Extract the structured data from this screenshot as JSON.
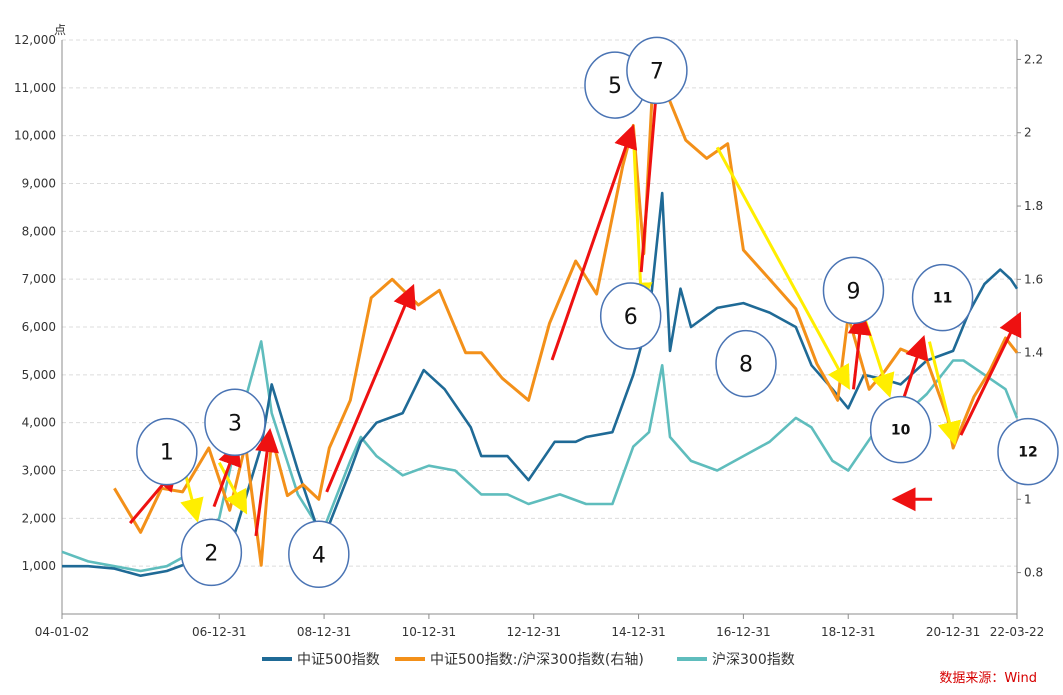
{
  "chart_data": {
    "type": "line",
    "unit_label": "点",
    "source": "数据来源：Wind",
    "left_axis": {
      "min": 0,
      "max": 12000,
      "ticks": [
        1000,
        2000,
        3000,
        4000,
        5000,
        6000,
        7000,
        8000,
        9000,
        10000,
        11000,
        12000
      ],
      "tick_labels": [
        "1,000",
        "2,000",
        "3,000",
        "4,000",
        "5,000",
        "6,000",
        "7,000",
        "8,000",
        "9,000",
        "10,000",
        "11,000",
        "12,000"
      ]
    },
    "right_axis": {
      "min": 0.687,
      "max": 2.253,
      "ticks": [
        0.8,
        1,
        1.2,
        1.4,
        1.6,
        1.8,
        2,
        2.2
      ],
      "tick_labels": [
        "0.8",
        "1",
        "1.2",
        "1.4",
        "1.6",
        "1.8",
        "2",
        "2.2"
      ]
    },
    "x_axis": {
      "start": 2004.0,
      "end": 2022.22,
      "ticks": [
        2004.0,
        2007.0,
        2009.0,
        2011.0,
        2013.0,
        2015.0,
        2017.0,
        2019.0,
        2021.0,
        2022.22
      ],
      "tick_labels": [
        "04-01-02",
        "06-12-31",
        "08-12-31",
        "10-12-31",
        "12-12-31",
        "14-12-31",
        "16-12-31",
        "18-12-31",
        "20-12-31",
        "22-03-22"
      ]
    },
    "grid": true,
    "legend_position": "bottom",
    "colors": {
      "csi500": "#1f6a96",
      "ratio": "#f39019",
      "hs300": "#5fbdbd",
      "up_arrow": "#ee1111",
      "down_arrow": "#ffee00",
      "circle_stroke": "#4a74b4"
    },
    "series": [
      {
        "key": "csi500",
        "name": "中证500指数",
        "axis": "left",
        "x": [
          2004.0,
          2004.5,
          2005.0,
          2005.5,
          2006.0,
          2006.5,
          2007.0,
          2007.3,
          2007.8,
          2008.0,
          2008.5,
          2008.9,
          2009.0,
          2009.5,
          2009.7,
          2010.0,
          2010.5,
          2010.9,
          2011.3,
          2011.8,
          2012.0,
          2012.5,
          2012.9,
          2013.4,
          2013.8,
          2014.0,
          2014.5,
          2014.9,
          2015.2,
          2015.45,
          2015.6,
          2015.8,
          2016.0,
          2016.5,
          2017.0,
          2017.5,
          2018.0,
          2018.3,
          2018.7,
          2019.0,
          2019.3,
          2019.7,
          2020.0,
          2020.5,
          2021.0,
          2021.3,
          2021.6,
          2021.9,
          2022.1,
          2022.22
        ],
        "values": [
          1000,
          1000,
          950,
          800,
          900,
          1100,
          1400,
          1700,
          3500,
          4800,
          3000,
          1700,
          1600,
          3000,
          3600,
          4000,
          4200,
          5100,
          4700,
          3900,
          3300,
          3300,
          2800,
          3600,
          3600,
          3700,
          3800,
          5000,
          6200,
          8800,
          5500,
          6800,
          6000,
          6400,
          6500,
          6300,
          6000,
          5200,
          4700,
          4300,
          5000,
          4900,
          4800,
          5300,
          5500,
          6300,
          6900,
          7200,
          7000,
          6800
        ]
      },
      {
        "key": "ratio",
        "name": "中证500指数:/沪深300指数(右轴)",
        "axis": "right",
        "x": [
          2005.0,
          2005.5,
          2005.9,
          2006.3,
          2006.8,
          2007.2,
          2007.5,
          2007.8,
          2008.0,
          2008.3,
          2008.6,
          2008.9,
          2009.1,
          2009.5,
          2009.9,
          2010.3,
          2010.8,
          2011.2,
          2011.7,
          2012.0,
          2012.4,
          2012.9,
          2013.3,
          2013.8,
          2014.2,
          2014.7,
          2014.9,
          2015.1,
          2015.25,
          2015.5,
          2015.9,
          2016.3,
          2016.7,
          2017.0,
          2017.5,
          2018.0,
          2018.4,
          2018.8,
          2019.0,
          2019.4,
          2019.7,
          2020.0,
          2020.5,
          2020.9,
          2021.0,
          2021.4,
          2021.7,
          2022.0,
          2022.22
        ],
        "values": [
          1.03,
          0.91,
          1.03,
          1.02,
          1.14,
          0.97,
          1.15,
          0.82,
          1.17,
          1.01,
          1.04,
          1.0,
          1.14,
          1.27,
          1.55,
          1.6,
          1.53,
          1.57,
          1.4,
          1.4,
          1.33,
          1.27,
          1.48,
          1.65,
          1.56,
          1.91,
          2.02,
          1.67,
          2.08,
          2.12,
          1.98,
          1.93,
          1.97,
          1.68,
          1.6,
          1.52,
          1.37,
          1.27,
          1.5,
          1.3,
          1.35,
          1.41,
          1.38,
          1.22,
          1.14,
          1.28,
          1.35,
          1.44,
          1.4
        ]
      },
      {
        "key": "hs300",
        "name": "沪深300指数",
        "axis": "left",
        "x": [
          2004.0,
          2004.5,
          2005.0,
          2005.5,
          2006.0,
          2006.5,
          2007.0,
          2007.5,
          2007.8,
          2008.0,
          2008.5,
          2008.9,
          2009.0,
          2009.5,
          2009.7,
          2010.0,
          2010.5,
          2011.0,
          2011.5,
          2012.0,
          2012.5,
          2012.9,
          2013.5,
          2014.0,
          2014.5,
          2014.9,
          2015.2,
          2015.45,
          2015.6,
          2016.0,
          2016.5,
          2017.0,
          2017.5,
          2018.0,
          2018.3,
          2018.7,
          2019.0,
          2019.5,
          2020.0,
          2020.5,
          2021.0,
          2021.2,
          2021.6,
          2022.0,
          2022.22
        ],
        "values": [
          1300,
          1100,
          1000,
          900,
          1000,
          1300,
          2000,
          4500,
          5700,
          4200,
          2500,
          1800,
          1800,
          3200,
          3700,
          3300,
          2900,
          3100,
          3000,
          2500,
          2500,
          2300,
          2500,
          2300,
          2300,
          3500,
          3800,
          5200,
          3700,
          3200,
          3000,
          3300,
          3600,
          4100,
          3900,
          3200,
          3000,
          3800,
          4100,
          4600,
          5300,
          5300,
          5000,
          4700,
          4100
        ]
      }
    ],
    "annotations": {
      "up_arrows": [
        {
          "from": [
            2005.3,
            0.935
          ],
          "to": [
            2006.1,
            1.07
          ]
        },
        {
          "from": [
            2006.9,
            0.98
          ],
          "to": [
            2007.3,
            1.135
          ]
        },
        {
          "from": [
            2007.7,
            0.9
          ],
          "to": [
            2007.95,
            1.17
          ]
        },
        {
          "from": [
            2009.05,
            1.02
          ],
          "to": [
            2010.65,
            1.565
          ]
        },
        {
          "from": [
            2013.35,
            1.38
          ],
          "to": [
            2014.85,
            2.0
          ]
        },
        {
          "from": [
            2015.05,
            1.62
          ],
          "to": [
            2015.35,
            2.13
          ]
        },
        {
          "from": [
            2019.1,
            1.3
          ],
          "to": [
            2019.25,
            1.49
          ]
        },
        {
          "from": [
            2020.0,
            1.25
          ],
          "to": [
            2020.4,
            1.425
          ]
        },
        {
          "from": [
            2020.6,
            1.0
          ],
          "to": [
            2020.0,
            1.0
          ]
        },
        {
          "from": [
            2021.15,
            1.175
          ],
          "to": [
            2022.22,
            1.49
          ]
        }
      ],
      "down_arrows": [
        {
          "from": [
            2006.3,
            1.1
          ],
          "to": [
            2006.55,
            0.96
          ]
        },
        {
          "from": [
            2007.0,
            1.1
          ],
          "to": [
            2007.45,
            0.98
          ]
        },
        {
          "from": [
            2014.9,
            2.0
          ],
          "to": [
            2015.05,
            1.55
          ]
        },
        {
          "from": [
            2016.5,
            1.96
          ],
          "to": [
            2018.95,
            1.32
          ]
        },
        {
          "from": [
            2019.3,
            1.5
          ],
          "to": [
            2019.75,
            1.3
          ]
        },
        {
          "from": [
            2020.55,
            1.43
          ],
          "to": [
            2021.0,
            1.17
          ]
        }
      ],
      "labels": [
        {
          "text": "1",
          "x": 2006.0,
          "y": 1.13
        },
        {
          "text": "2",
          "x": 2006.85,
          "y": 0.855
        },
        {
          "text": "3",
          "x": 2007.3,
          "y": 1.21
        },
        {
          "text": "4",
          "x": 2008.9,
          "y": 0.85
        },
        {
          "text": "5",
          "x": 2014.55,
          "y": 2.13
        },
        {
          "text": "6",
          "x": 2014.85,
          "y": 1.5
        },
        {
          "text": "7",
          "x": 2015.35,
          "y": 2.17
        },
        {
          "text": "8",
          "x": 2017.05,
          "y": 1.37
        },
        {
          "text": "9",
          "x": 2019.1,
          "y": 1.57
        },
        {
          "text": "10",
          "x": 2020.0,
          "y": 1.19
        },
        {
          "text": "11",
          "x": 2020.8,
          "y": 1.55
        },
        {
          "text": "12",
          "x": 2022.6,
          "y": 1.13
        }
      ]
    }
  }
}
